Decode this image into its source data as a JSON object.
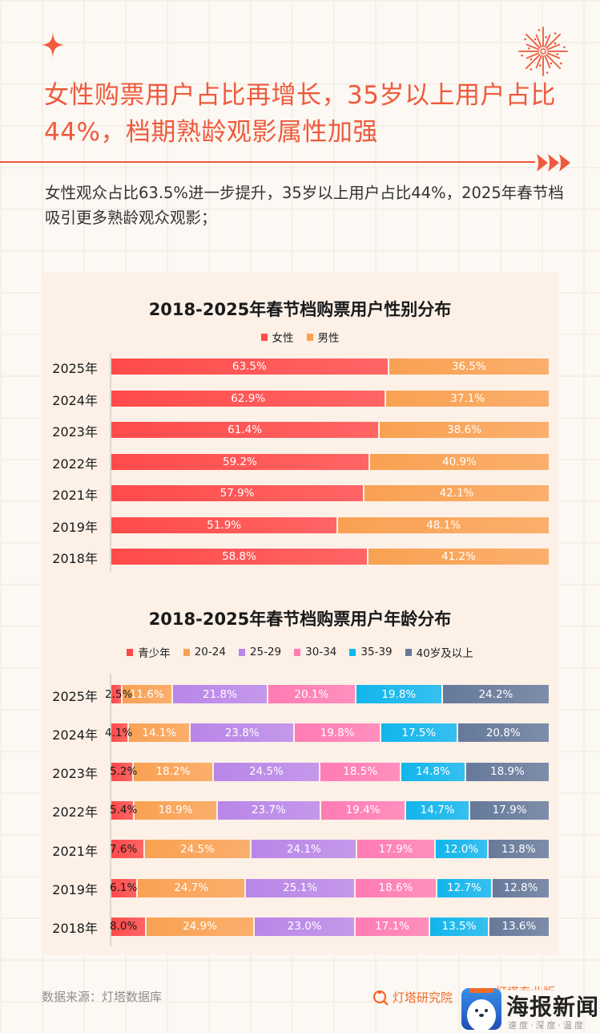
{
  "header": {
    "headline": "女性购票用户占比再增长，35岁以上用户占比44%，档期熟龄观影属性加强",
    "subtext": "女性观众占比63.5%进一步提升，35岁以上用户占比44%，2025年春节档吸引更多熟龄观众观影；"
  },
  "footer": {
    "source": "数据来源：灯塔数据库",
    "brand1": "灯塔研究院",
    "brand2": "灯塔专业版",
    "watermark_name": "海报新闻",
    "watermark_slogan": "速度·深度·温度"
  },
  "colors": {
    "accent": "#ef5a3c",
    "female": "#ff4a4a",
    "male": "#f9a152",
    "teen": "#ff4a4a",
    "a20_24": "#f9a152",
    "a25_29": "#b986e8",
    "a30_34": "#ff7bb4",
    "a35_39": "#12b5ec",
    "a40_plus": "#66799a"
  },
  "chart_data": [
    {
      "type": "bar",
      "orientation": "horizontal",
      "stacked": "percent",
      "title": "2018-2025年春节档购票用户性别分布",
      "legend_position": "top-center",
      "categories": [
        "2025年",
        "2024年",
        "2023年",
        "2022年",
        "2021年",
        "2019年",
        "2018年"
      ],
      "series": [
        {
          "name": "女性",
          "color": "#ff4a4a",
          "values": [
            63.5,
            62.9,
            61.4,
            59.2,
            57.9,
            51.9,
            58.8
          ]
        },
        {
          "name": "男性",
          "color": "#f9a152",
          "values": [
            36.5,
            37.1,
            38.6,
            40.9,
            42.1,
            48.1,
            41.2
          ]
        }
      ],
      "value_format": "%",
      "xlim": [
        0,
        100
      ]
    },
    {
      "type": "bar",
      "orientation": "horizontal",
      "stacked": "percent",
      "title": "2018-2025年春节档购票用户年龄分布",
      "legend_position": "top-center",
      "categories": [
        "2025年",
        "2024年",
        "2023年",
        "2022年",
        "2021年",
        "2019年",
        "2018年"
      ],
      "series": [
        {
          "name": "青少年",
          "color": "#ff4a4a",
          "values": [
            2.5,
            4.1,
            5.2,
            5.4,
            7.6,
            6.1,
            8.0
          ]
        },
        {
          "name": "20-24",
          "color": "#f9a152",
          "values": [
            11.6,
            14.1,
            18.2,
            18.9,
            24.5,
            24.7,
            24.9
          ]
        },
        {
          "name": "25-29",
          "color": "#b986e8",
          "values": [
            21.8,
            23.8,
            24.5,
            23.7,
            24.1,
            25.1,
            23.0
          ]
        },
        {
          "name": "30-34",
          "color": "#ff7bb4",
          "values": [
            20.1,
            19.8,
            18.5,
            19.4,
            17.9,
            18.6,
            17.1
          ]
        },
        {
          "name": "35-39",
          "color": "#12b5ec",
          "values": [
            19.8,
            17.5,
            14.8,
            14.7,
            12.0,
            12.7,
            13.5
          ]
        },
        {
          "name": "40岁及以上",
          "color": "#66799a",
          "values": [
            24.2,
            20.8,
            18.9,
            17.9,
            13.8,
            12.8,
            13.6
          ]
        }
      ],
      "value_format": "%",
      "xlim": [
        0,
        100
      ]
    }
  ]
}
